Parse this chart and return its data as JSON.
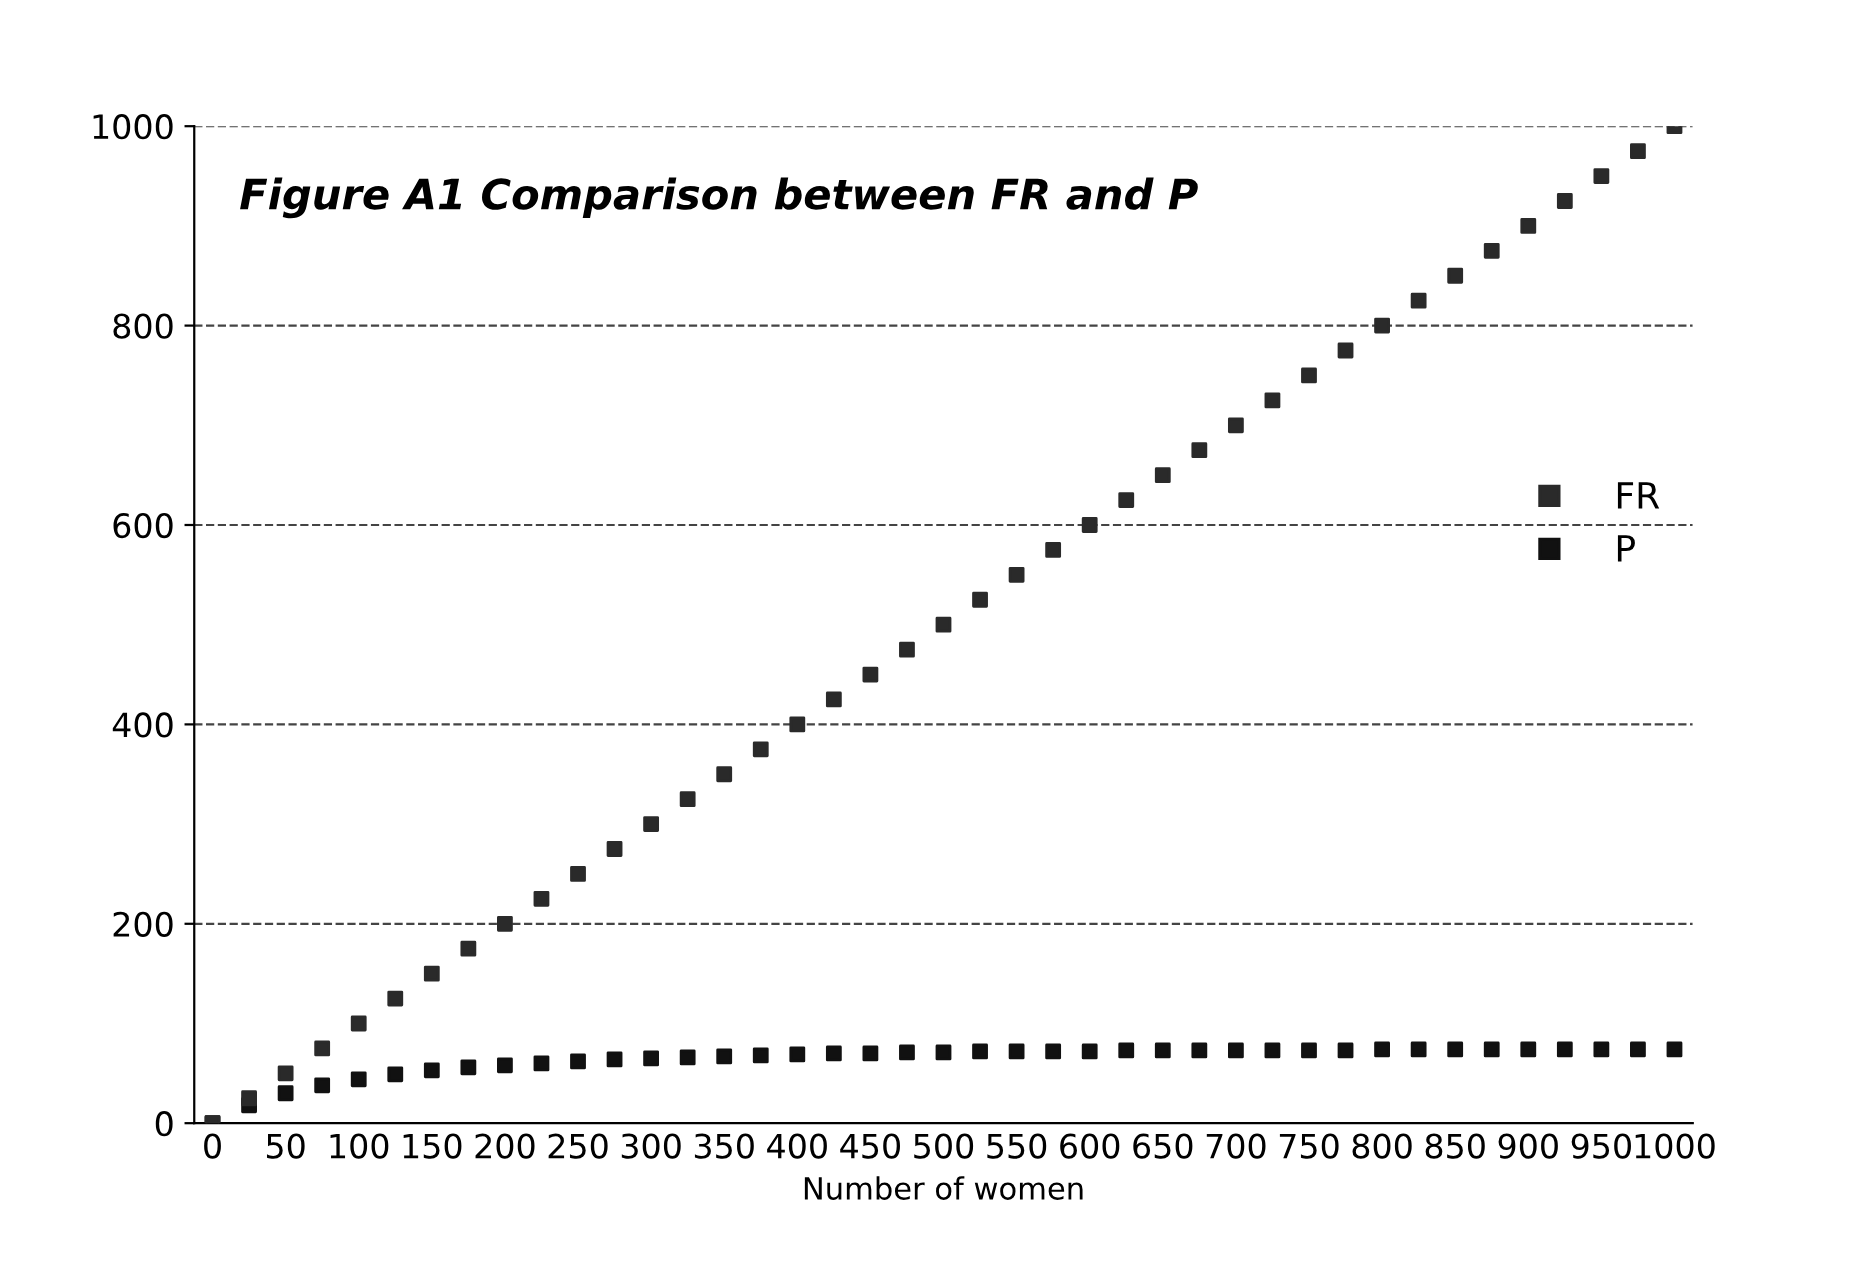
{
  "chart_data": {
    "type": "scatter",
    "title": "Figure A1 Comparison between FR and P",
    "xlabel": "Number of women",
    "categories": [
      "0",
      null,
      "50",
      null,
      "100",
      null,
      "150",
      null,
      "200",
      null,
      "250",
      null,
      "300",
      null,
      "350",
      null,
      "400",
      null,
      "450",
      null,
      "500",
      null,
      "550",
      null,
      "600",
      null,
      "650",
      null,
      "700",
      null,
      "750",
      null,
      "800",
      null,
      "850",
      null,
      "900",
      null,
      "950",
      null,
      "1000"
    ],
    "series": [
      {
        "name": "FR",
        "color": "#2a2a2a",
        "values": [
          0,
          25,
          50,
          75,
          100,
          125,
          150,
          175,
          200,
          225,
          250,
          275,
          300,
          325,
          350,
          375,
          400,
          425,
          450,
          475,
          500,
          525,
          550,
          575,
          600,
          625,
          650,
          675,
          700,
          725,
          750,
          775,
          800,
          825,
          850,
          875,
          900,
          925,
          950,
          975,
          1000
        ]
      },
      {
        "name": "P",
        "color": "#111111",
        "values": [
          0,
          18,
          30,
          38,
          44,
          49,
          53,
          56,
          58,
          60,
          62,
          64,
          65,
          66,
          67,
          68,
          69,
          70,
          70,
          71,
          71,
          72,
          72,
          72,
          72,
          73,
          73,
          73,
          73,
          73,
          73,
          73,
          74,
          74,
          74,
          74,
          74,
          74,
          74,
          74,
          74
        ]
      }
    ],
    "ylim": [
      0,
      1000
    ],
    "yticks": [
      0,
      200,
      400,
      600,
      800,
      1000
    ],
    "grid": "y",
    "legend": "right",
    "marker": "square"
  }
}
